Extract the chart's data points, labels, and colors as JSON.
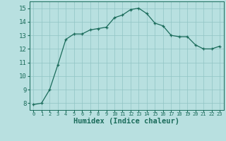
{
  "x": [
    0,
    1,
    2,
    3,
    4,
    5,
    6,
    7,
    8,
    9,
    10,
    11,
    12,
    13,
    14,
    15,
    16,
    17,
    18,
    19,
    20,
    21,
    22,
    23
  ],
  "y": [
    7.9,
    8.0,
    9.0,
    10.8,
    12.7,
    13.1,
    13.1,
    13.4,
    13.5,
    13.6,
    14.3,
    14.5,
    14.9,
    15.0,
    14.6,
    13.9,
    13.7,
    13.0,
    12.9,
    12.9,
    12.3,
    12.0,
    12.0,
    12.2
  ],
  "line_color": "#1a6b5a",
  "marker_color": "#1a6b5a",
  "bg_color": "#b8e0e0",
  "grid_color": "#90c4c4",
  "xlabel": "Humidex (Indice chaleur)",
  "xlabel_fontsize": 7.5,
  "ylabel_ticks": [
    8,
    9,
    10,
    11,
    12,
    13,
    14,
    15
  ],
  "xlim": [
    -0.5,
    23.5
  ],
  "ylim": [
    7.5,
    15.5
  ],
  "tick_color": "#1a6b5a",
  "spine_color": "#1a6b5a"
}
